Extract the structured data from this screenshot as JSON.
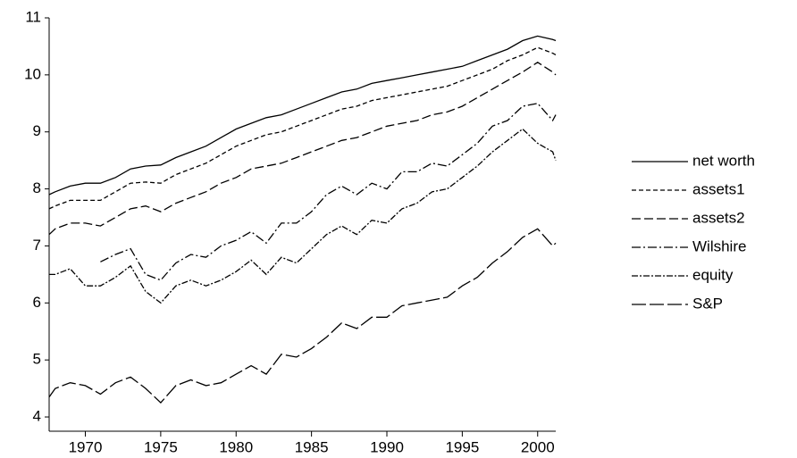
{
  "chart_data": {
    "type": "line",
    "x": [
      1967.6,
      1968,
      1969,
      1970,
      1971,
      1972,
      1973,
      1974,
      1975,
      1976,
      1977,
      1978,
      1979,
      1980,
      1981,
      1982,
      1983,
      1984,
      1985,
      1986,
      1987,
      1988,
      1989,
      1990,
      1991,
      1992,
      1993,
      1994,
      1995,
      1996,
      1997,
      1998,
      1999,
      2000,
      2001,
      2001.2
    ],
    "series": [
      {
        "name": "net worth",
        "color": "#000000",
        "dash": "none",
        "values": [
          7.9,
          7.95,
          8.05,
          8.1,
          8.1,
          8.2,
          8.35,
          8.4,
          8.42,
          8.55,
          8.65,
          8.75,
          8.9,
          9.05,
          9.15,
          9.25,
          9.3,
          9.4,
          9.5,
          9.6,
          9.7,
          9.75,
          9.85,
          9.9,
          9.95,
          10.0,
          10.05,
          10.1,
          10.15,
          10.25,
          10.35,
          10.45,
          10.6,
          10.68,
          10.62,
          10.6
        ]
      },
      {
        "name": "assets1",
        "color": "#000000",
        "dash": "5 3",
        "values": [
          7.65,
          7.7,
          7.8,
          7.8,
          7.8,
          7.95,
          8.1,
          8.12,
          8.1,
          8.25,
          8.35,
          8.45,
          8.6,
          8.75,
          8.85,
          8.95,
          9.0,
          9.1,
          9.2,
          9.3,
          9.4,
          9.45,
          9.55,
          9.6,
          9.65,
          9.7,
          9.75,
          9.8,
          9.9,
          10.0,
          10.1,
          10.25,
          10.35,
          10.48,
          10.38,
          10.35
        ]
      },
      {
        "name": "assets2",
        "color": "#000000",
        "dash": "10 4",
        "values": [
          7.2,
          7.3,
          7.4,
          7.4,
          7.35,
          7.5,
          7.65,
          7.7,
          7.6,
          7.75,
          7.85,
          7.95,
          8.1,
          8.2,
          8.35,
          8.4,
          8.45,
          8.55,
          8.65,
          8.75,
          8.85,
          8.9,
          9.0,
          9.1,
          9.15,
          9.2,
          9.3,
          9.35,
          9.45,
          9.6,
          9.75,
          9.9,
          10.05,
          10.22,
          10.05,
          10.0
        ]
      },
      {
        "name": "Wilshire",
        "color": "#000000",
        "dash": "10 3 2 3",
        "values": [
          null,
          null,
          null,
          null,
          6.72,
          6.85,
          6.95,
          6.5,
          6.4,
          6.7,
          6.85,
          6.8,
          7.0,
          7.1,
          7.25,
          7.05,
          7.4,
          7.4,
          7.6,
          7.9,
          8.05,
          7.9,
          8.1,
          8.0,
          8.3,
          8.3,
          8.45,
          8.4,
          8.6,
          8.8,
          9.1,
          9.2,
          9.45,
          9.5,
          9.2,
          9.3
        ]
      },
      {
        "name": "equity",
        "color": "#000000",
        "dash": "7 2 2 2",
        "values": [
          6.5,
          6.5,
          6.6,
          6.3,
          6.3,
          6.45,
          6.65,
          6.2,
          6.0,
          6.3,
          6.4,
          6.3,
          6.4,
          6.55,
          6.75,
          6.5,
          6.8,
          6.7,
          6.95,
          7.2,
          7.35,
          7.2,
          7.45,
          7.4,
          7.65,
          7.75,
          7.95,
          8.0,
          8.2,
          8.4,
          8.65,
          8.85,
          9.05,
          8.8,
          8.65,
          8.5
        ]
      },
      {
        "name": "S&P",
        "color": "#000000",
        "dash": "16 4",
        "values": [
          4.35,
          4.5,
          4.6,
          4.55,
          4.4,
          4.6,
          4.7,
          4.5,
          4.25,
          4.55,
          4.65,
          4.55,
          4.6,
          4.75,
          4.9,
          4.75,
          5.1,
          5.05,
          5.2,
          5.4,
          5.65,
          5.55,
          5.75,
          5.75,
          5.95,
          6.0,
          6.05,
          6.1,
          6.3,
          6.45,
          6.7,
          6.9,
          7.15,
          7.3,
          7.0,
          7.05
        ]
      }
    ],
    "xlim": [
      1967.6,
      2001.2
    ],
    "xticks": [
      1970,
      1975,
      1980,
      1985,
      1990,
      1995,
      2000
    ],
    "ylim": [
      3.75,
      11
    ],
    "yticks": [
      4,
      5,
      6,
      7,
      8,
      9,
      10,
      11
    ],
    "legend": "right"
  }
}
